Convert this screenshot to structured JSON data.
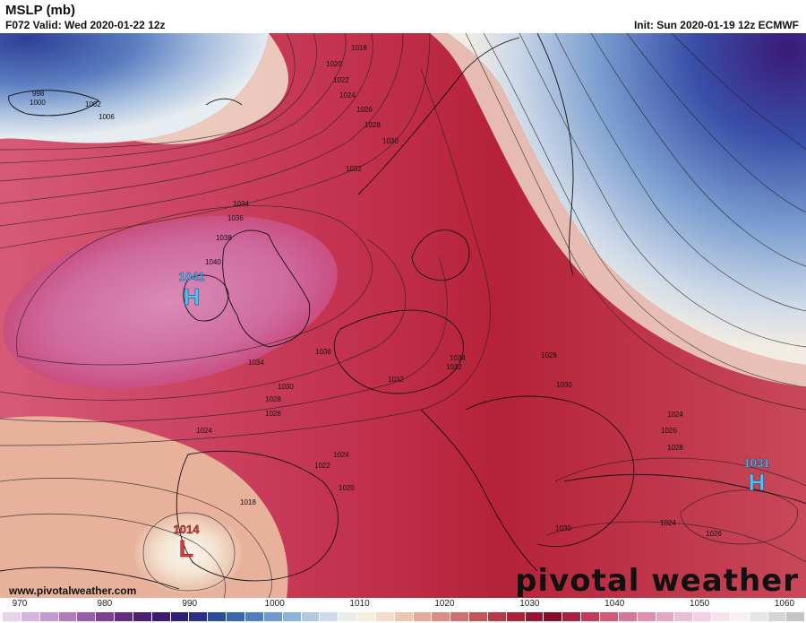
{
  "header": {
    "title": "MSLP (mb)",
    "valid": "F072 Valid: Wed 2020-01-22 12z",
    "init": "Init: Sun 2020-01-19 12z ECMWF"
  },
  "footer": {
    "website": "www.pivotalweather.com",
    "brand": "pivotal weather"
  },
  "centers": [
    {
      "type": "H",
      "value": "1041",
      "color": "#4fc3f7"
    },
    {
      "type": "H",
      "value": "1031",
      "color": "#4fc3f7"
    },
    {
      "type": "L",
      "value": "1014",
      "color": "#e53935"
    }
  ],
  "isobar_labels": [
    "998",
    "1000",
    "1002",
    "1006",
    "1018",
    "1020",
    "1022",
    "1024",
    "1026",
    "1028",
    "1030",
    "1032",
    "1034",
    "1036",
    "1038",
    "1040",
    "1036",
    "1034",
    "1034",
    "1032",
    "1030",
    "1028",
    "1026",
    "1024",
    "1032",
    "1028",
    "1030",
    "1024",
    "1026",
    "1028",
    "1024",
    "1022",
    "1020",
    "1018",
    "1024",
    "1026",
    "1030"
  ],
  "colorbar": {
    "ticks": [
      "970",
      "980",
      "990",
      "1000",
      "1010",
      "1020",
      "1030",
      "1040",
      "1050",
      "1060"
    ],
    "colors": [
      "#e8d2ec",
      "#d7b4de",
      "#c596cf",
      "#b27abf",
      "#9a5cad",
      "#7f3f98",
      "#642c84",
      "#4a1f74",
      "#3b1a70",
      "#2f1f7a",
      "#2a2f8a",
      "#2e4a9e",
      "#3865b0",
      "#4d80c0",
      "#6d9acd",
      "#8fb2d9",
      "#b0c8e2",
      "#cfdbe9",
      "#e8eee8",
      "#f4efdf",
      "#f3dcc8",
      "#ecc5b3",
      "#e3aa9c",
      "#d98d86",
      "#cf7070",
      "#c45459",
      "#b93a46",
      "#ad2336",
      "#9b1330",
      "#880c2c",
      "#a8203e",
      "#c23a5a",
      "#d0587a",
      "#d97597",
      "#e08fb0",
      "#e6a7c5",
      "#ecbdd6",
      "#f1d1e3",
      "#f5e2ed",
      "#f8eef4",
      "#e6e6e6",
      "#d5d5d5",
      "#c4c4c4"
    ]
  }
}
